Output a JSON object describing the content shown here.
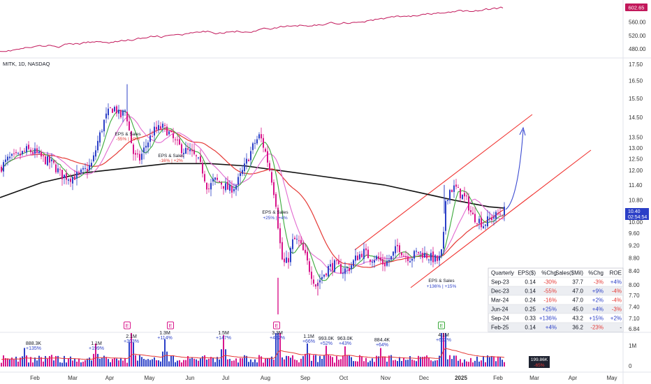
{
  "symbol_label": "MITK, 1D, NASDAQ",
  "colors": {
    "up": "#2b3fc7",
    "down": "#d8148a",
    "index_line": "#c2185b",
    "ma_fast": "#3aa93a",
    "ma_pink": "#e26ad0",
    "ma_red": "#e53935",
    "ma_black": "#111111",
    "channel": "#f0322f",
    "arrow": "#3b4bd1",
    "vol_ma": "#e53935"
  },
  "index_axis": {
    "ticks": [
      "560.00",
      "520.00",
      "480.00"
    ],
    "last_value": "602.65"
  },
  "price_axis": {
    "ticks": [
      "17.50",
      "16.50",
      "15.50",
      "14.50",
      "13.50",
      "13.00",
      "12.50",
      "12.00",
      "11.40",
      "10.80",
      "10.00",
      "9.60",
      "9.20",
      "8.80",
      "8.40",
      "8.00",
      "7.70",
      "7.40",
      "7.10",
      "6.84"
    ],
    "last_price": "10.40",
    "countdown": "02:54:54"
  },
  "volume_axis": {
    "ticks": [
      "1M",
      "0"
    ],
    "last_volume": "199.86K",
    "last_volume_change": "-65%"
  },
  "x_axis": {
    "labels": [
      "Feb",
      "Mar",
      "Apr",
      "May",
      "Jun",
      "Jul",
      "Aug",
      "Sep",
      "Oct",
      "Nov",
      "Dec",
      "2025",
      "Feb",
      "Mar",
      "Apr",
      "May"
    ]
  },
  "eps_labels": [
    {
      "title": "EPS & Sales",
      "value": "-55% | +9%"
    },
    {
      "title": "EPS & Sales",
      "value": "-16% | +2%"
    },
    {
      "title": "EPS & Sales",
      "value": "+25% | +4%"
    },
    {
      "title": "EPS & Sales",
      "value": "+136% | +15%"
    }
  ],
  "earnings_marker": "E",
  "volume_labels": [
    {
      "value": "888.3K",
      "change": "+135%"
    },
    {
      "value": "1.1M",
      "change": "+199%"
    },
    {
      "value": "2.1M",
      "change": "+303%"
    },
    {
      "value": "1.3M",
      "change": "+114%"
    },
    {
      "value": "1.5M",
      "change": "+147%"
    },
    {
      "value": "3.3M",
      "change": "+452%"
    },
    {
      "value": "1.1M",
      "change": "+66%"
    },
    {
      "value": "993.0K",
      "change": "+52%"
    },
    {
      "value": "963.0K",
      "change": "+43%"
    },
    {
      "value": "884.4K",
      "change": "+64%"
    },
    {
      "value": "4.1M",
      "change": "+632%"
    }
  ],
  "fundamentals_table": {
    "headers": [
      "Quarterly",
      "EPS($)",
      "%Chg",
      "Sales($Mil)",
      "%Chg",
      "ROE"
    ],
    "rows": [
      [
        "Sep-23",
        "0.14",
        "-30%",
        "37.7",
        "-3%",
        "+4%"
      ],
      [
        "Dec-23",
        "0.14",
        "-55%",
        "47.0",
        "+9%",
        "-4%"
      ],
      [
        "Mar-24",
        "0.24",
        "-16%",
        "47.0",
        "+2%",
        "-4%"
      ],
      [
        "Jun-24",
        "0.25",
        "+25%",
        "45.0",
        "+4%",
        "-3%"
      ],
      [
        "Sep-24",
        "0.33",
        "+136%",
        "43.2",
        "+15%",
        "+2%"
      ],
      [
        "Feb-25",
        "0.14",
        "+4%",
        "36.2",
        "-23%",
        "-"
      ]
    ]
  },
  "chart_data": {
    "type": "candlestick",
    "symbol": "MITK",
    "interval": "1D",
    "exchange": "NASDAQ",
    "price_range": [
      6.84,
      17.5
    ],
    "price_scale": "log",
    "months": [
      "Feb",
      "Mar",
      "Apr",
      "May",
      "Jun",
      "Jul",
      "Aug",
      "Sep",
      "Oct",
      "Nov",
      "Dec",
      "2025",
      "Feb",
      "Mar",
      "Apr",
      "May"
    ],
    "approx_close_by_month": [
      {
        "month": "Feb",
        "close": 12.6
      },
      {
        "month": "Mar",
        "close": 11.9
      },
      {
        "month": "Apr",
        "close": 14.6
      },
      {
        "month": "May",
        "close": 13.0
      },
      {
        "month": "Jun",
        "close": 12.0
      },
      {
        "month": "Jul",
        "close": 11.2
      },
      {
        "month": "Aug",
        "close": 9.4
      },
      {
        "month": "Sep",
        "close": 8.3
      },
      {
        "month": "Oct",
        "close": 8.7
      },
      {
        "month": "Nov",
        "close": 8.8
      },
      {
        "month": "Dec",
        "close": 9.1
      },
      {
        "month": "2025",
        "close": 11.2
      },
      {
        "month": "Feb",
        "close": 10.4
      }
    ],
    "last_close": 10.4,
    "index_line": {
      "range": [
        480,
        602.65
      ],
      "last": 602.65
    },
    "volume_ticks": [
      "1M",
      "0"
    ],
    "legend": "none",
    "grid": false
  }
}
